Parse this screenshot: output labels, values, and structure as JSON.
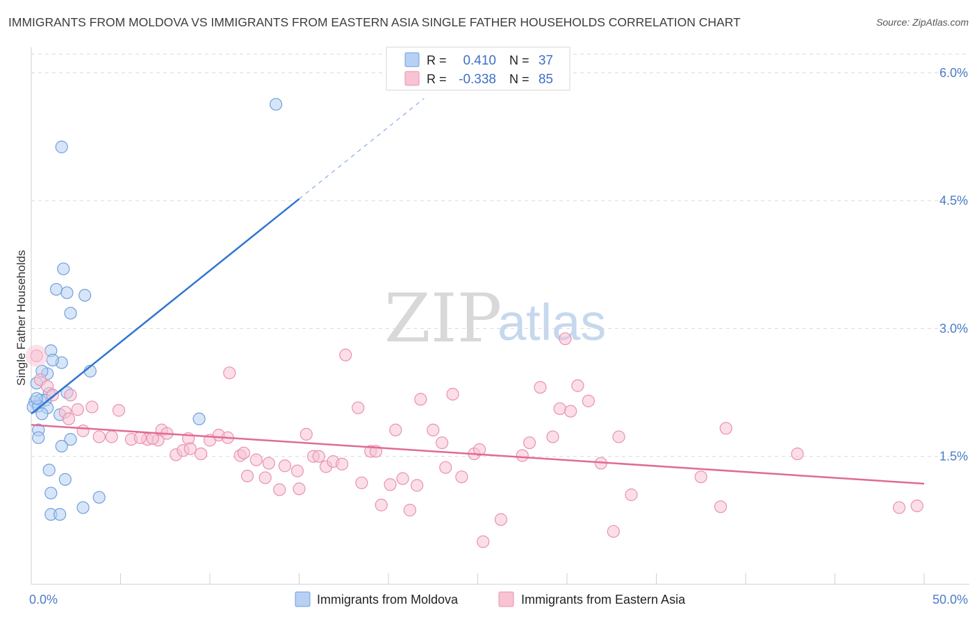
{
  "title": "IMMIGRANTS FROM MOLDOVA VS IMMIGRANTS FROM EASTERN ASIA SINGLE FATHER HOUSEHOLDS CORRELATION CHART",
  "source": "Source: ZipAtlas.com",
  "watermark": {
    "zip": "ZIP",
    "atlas": "atlas"
  },
  "colors": {
    "moldova_fill": "#b7d0f3",
    "moldova_stroke": "#6f9fdc",
    "moldova_line": "#2f74d0",
    "asia_fill": "#f8c3d3",
    "asia_stroke": "#e892ae",
    "asia_line": "#e06a97",
    "grid": "#d9d9d9",
    "tick_text": "#4a7cc7"
  },
  "chart_data": {
    "type": "scatter",
    "title": "",
    "xlabel": "",
    "ylabel": "Single Father Households",
    "xlim": [
      0,
      50
    ],
    "ylim": [
      0,
      6.3
    ],
    "x_tick_labels": [
      {
        "value": 0,
        "label": "0.0%"
      },
      {
        "value": 50,
        "label": "50.0%"
      }
    ],
    "y_tick_labels": [
      {
        "value": 1.5,
        "label": "1.5%"
      },
      {
        "value": 3.0,
        "label": "3.0%"
      },
      {
        "value": 4.5,
        "label": "4.5%"
      },
      {
        "value": 6.0,
        "label": "6.0%"
      }
    ],
    "grid": true,
    "legend_position": "top-center",
    "correlation_box": [
      {
        "r_label": "R =",
        "r_value": "0.410",
        "n_label": "N =",
        "n_value": "37"
      },
      {
        "r_label": "R =",
        "r_value": "-0.338",
        "n_label": "N =",
        "n_value": "85"
      }
    ],
    "series": [
      {
        "name": "Immigrants from Moldova",
        "trend": {
          "x_start": 0,
          "y_start": 2.0,
          "x_end_solid": 15,
          "y_end_solid": 4.52,
          "x_end_dash": 22,
          "y_end_dash": 5.7
        },
        "points": [
          [
            13.7,
            5.63
          ],
          [
            1.7,
            5.13
          ],
          [
            1.8,
            3.7
          ],
          [
            1.4,
            3.46
          ],
          [
            2.0,
            3.42
          ],
          [
            3.0,
            3.39
          ],
          [
            2.2,
            3.18
          ],
          [
            1.1,
            2.74
          ],
          [
            1.7,
            2.6
          ],
          [
            1.2,
            2.63
          ],
          [
            0.9,
            2.47
          ],
          [
            0.6,
            2.5
          ],
          [
            3.3,
            2.5
          ],
          [
            0.3,
            2.36
          ],
          [
            2.0,
            2.25
          ],
          [
            1.0,
            2.24
          ],
          [
            0.5,
            2.16
          ],
          [
            0.8,
            2.16
          ],
          [
            0.2,
            2.14
          ],
          [
            0.1,
            2.08
          ],
          [
            0.4,
            2.09
          ],
          [
            0.9,
            2.07
          ],
          [
            0.6,
            2.0
          ],
          [
            1.6,
            1.99
          ],
          [
            9.4,
            1.94
          ],
          [
            0.4,
            1.81
          ],
          [
            0.4,
            1.72
          ],
          [
            2.2,
            1.7
          ],
          [
            1.7,
            1.62
          ],
          [
            1.0,
            1.34
          ],
          [
            1.9,
            1.23
          ],
          [
            1.1,
            1.07
          ],
          [
            3.8,
            1.02
          ],
          [
            2.9,
            0.9
          ],
          [
            1.1,
            0.82
          ],
          [
            1.6,
            0.82
          ],
          [
            0.3,
            2.18
          ]
        ]
      },
      {
        "name": "Immigrants from Eastern Asia",
        "trend": {
          "x_start": 0,
          "y_start": 1.87,
          "x_end": 50,
          "y_end": 1.18
        },
        "points": [
          [
            0.3,
            2.68
          ],
          [
            0.5,
            2.4
          ],
          [
            0.9,
            2.32
          ],
          [
            2.2,
            2.22
          ],
          [
            1.2,
            2.22
          ],
          [
            1.9,
            2.02
          ],
          [
            2.6,
            2.05
          ],
          [
            3.4,
            2.08
          ],
          [
            4.9,
            2.04
          ],
          [
            2.1,
            1.94
          ],
          [
            2.9,
            1.8
          ],
          [
            3.8,
            1.73
          ],
          [
            4.5,
            1.73
          ],
          [
            5.6,
            1.7
          ],
          [
            6.5,
            1.7
          ],
          [
            7.1,
            1.69
          ],
          [
            6.8,
            1.71
          ],
          [
            6.1,
            1.72
          ],
          [
            7.3,
            1.81
          ],
          [
            7.6,
            1.77
          ],
          [
            8.8,
            1.71
          ],
          [
            10.0,
            1.69
          ],
          [
            10.5,
            1.75
          ],
          [
            11.0,
            1.72
          ],
          [
            8.1,
            1.52
          ],
          [
            8.5,
            1.57
          ],
          [
            8.9,
            1.59
          ],
          [
            9.5,
            1.53
          ],
          [
            11.1,
            2.48
          ],
          [
            11.7,
            1.51
          ],
          [
            11.9,
            1.54
          ],
          [
            12.6,
            1.46
          ],
          [
            12.1,
            1.27
          ],
          [
            13.1,
            1.25
          ],
          [
            13.3,
            1.42
          ],
          [
            13.9,
            1.11
          ],
          [
            14.2,
            1.39
          ],
          [
            14.9,
            1.33
          ],
          [
            15.0,
            1.12
          ],
          [
            15.4,
            1.76
          ],
          [
            15.8,
            1.5
          ],
          [
            16.1,
            1.5
          ],
          [
            16.5,
            1.38
          ],
          [
            16.9,
            1.44
          ],
          [
            17.4,
            1.41
          ],
          [
            17.6,
            2.69
          ],
          [
            18.3,
            2.07
          ],
          [
            18.5,
            1.19
          ],
          [
            19.0,
            1.56
          ],
          [
            19.3,
            1.56
          ],
          [
            19.6,
            0.93
          ],
          [
            20.1,
            1.17
          ],
          [
            20.4,
            1.81
          ],
          [
            20.8,
            1.24
          ],
          [
            21.2,
            0.87
          ],
          [
            21.6,
            1.16
          ],
          [
            21.8,
            2.17
          ],
          [
            22.5,
            1.81
          ],
          [
            23.0,
            1.66
          ],
          [
            23.2,
            1.37
          ],
          [
            23.6,
            2.23
          ],
          [
            24.1,
            1.26
          ],
          [
            24.8,
            1.53
          ],
          [
            25.1,
            1.58
          ],
          [
            25.3,
            0.5
          ],
          [
            26.3,
            0.76
          ],
          [
            27.5,
            1.51
          ],
          [
            27.9,
            1.66
          ],
          [
            28.5,
            2.31
          ],
          [
            29.2,
            1.73
          ],
          [
            29.6,
            2.06
          ],
          [
            30.2,
            2.03
          ],
          [
            29.9,
            2.88
          ],
          [
            30.6,
            2.33
          ],
          [
            31.2,
            2.15
          ],
          [
            31.9,
            1.42
          ],
          [
            32.6,
            0.62
          ],
          [
            32.9,
            1.73
          ],
          [
            33.6,
            1.05
          ],
          [
            37.5,
            1.26
          ],
          [
            38.6,
            0.91
          ],
          [
            38.9,
            1.83
          ],
          [
            42.9,
            1.53
          ],
          [
            48.6,
            0.9
          ],
          [
            49.6,
            0.92
          ]
        ]
      }
    ]
  }
}
